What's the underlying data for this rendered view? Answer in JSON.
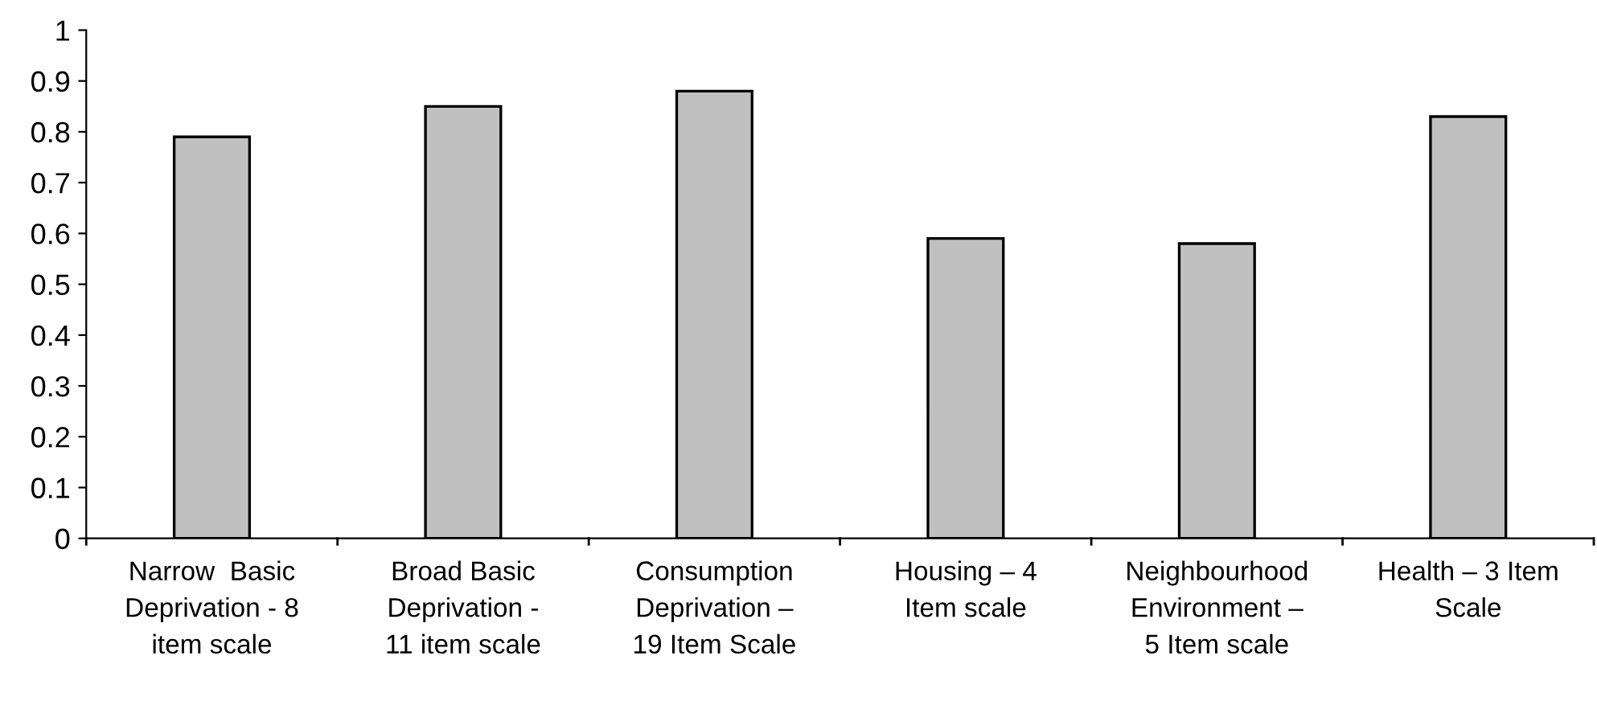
{
  "chart_data": {
    "type": "bar",
    "categories": [
      "Narrow  Basic\nDeprivation - 8\nitem scale",
      "Broad Basic\nDeprivation -\n11 item scale",
      "Consumption\nDeprivation –\n19 Item Scale",
      "Housing – 4\nItem scale",
      "Neighbourhood\nEnvironment –\n5 Item scale",
      "Health – 3 Item\nScale"
    ],
    "values": [
      0.79,
      0.85,
      0.88,
      0.59,
      0.58,
      0.83
    ],
    "color": "#c0c0c0",
    "ylim": [
      0,
      1
    ],
    "yticks": [
      0,
      0.1,
      0.2,
      0.3,
      0.4,
      0.5,
      0.6,
      0.7,
      0.8,
      0.9,
      1
    ],
    "grid": false,
    "legend": false
  }
}
